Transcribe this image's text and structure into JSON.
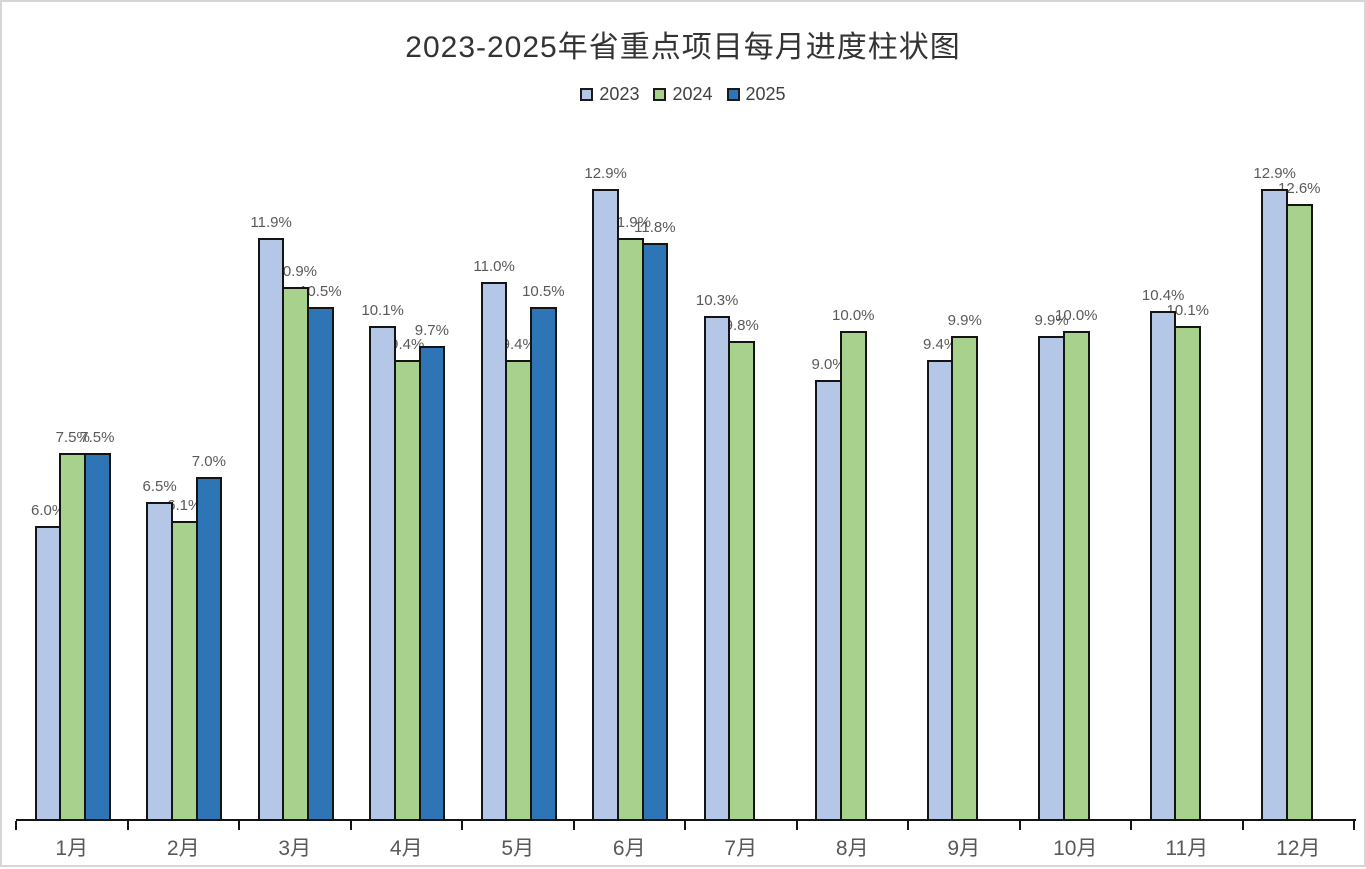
{
  "title": "2023-2025年省重点项目每月进度柱状图",
  "chart_data": {
    "type": "bar",
    "title": "2023-2025年省重点项目每月进度柱状图",
    "categories": [
      "1月",
      "2月",
      "3月",
      "4月",
      "5月",
      "6月",
      "7月",
      "8月",
      "9月",
      "10月",
      "11月",
      "12月"
    ],
    "series": [
      {
        "name": "2023",
        "color": "#B4C7E7",
        "values": [
          6.0,
          6.5,
          11.9,
          10.1,
          11.0,
          12.9,
          10.3,
          9.0,
          9.4,
          9.9,
          10.4,
          12.9
        ]
      },
      {
        "name": "2024",
        "color": "#A9D18E",
        "values": [
          7.5,
          6.1,
          10.9,
          9.4,
          9.4,
          11.9,
          9.8,
          10.0,
          9.9,
          10.0,
          10.1,
          12.6
        ]
      },
      {
        "name": "2025",
        "color": "#2E75B6",
        "values": [
          7.5,
          7.0,
          10.5,
          9.7,
          10.5,
          11.8,
          null,
          null,
          null,
          null,
          null,
          null
        ]
      }
    ],
    "value_format": "{v}%",
    "value_decimals": 1,
    "xlabel": "",
    "ylabel": "",
    "ylim": [
      0,
      13.6
    ],
    "grid": false,
    "y_axis_visible": false,
    "legend_position": "top",
    "legend_entries": [
      "2023",
      "2024",
      "2025"
    ],
    "label_color": "#595959",
    "axis_label_color": "#595959",
    "axis_line_color": "#141414",
    "bar_outline_color": "#141414",
    "title_color": "#333333"
  }
}
